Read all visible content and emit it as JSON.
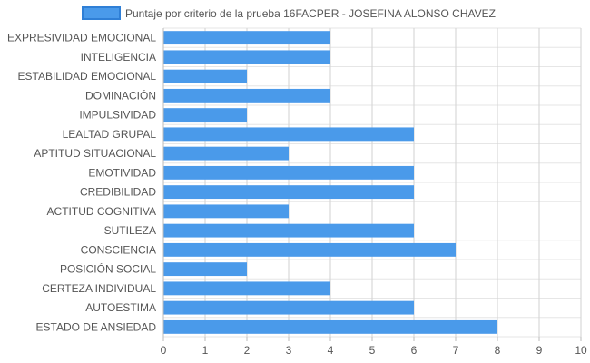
{
  "chart_data": {
    "type": "bar",
    "orientation": "horizontal",
    "categories": [
      "EXPRESIVIDAD EMOCIONAL",
      "INTELIGENCIA",
      "ESTABILIDAD EMOCIONAL",
      "DOMINACIÓN",
      "IMPULSIVIDAD",
      "LEALTAD GRUPAL",
      "APTITUD SITUACIONAL",
      "EMOTIVIDAD",
      "CREDIBILIDAD",
      "ACTITUD COGNITIVA",
      "SUTILEZA",
      "CONSCIENCIA",
      "POSICIÓN SOCIAL",
      "CERTEZA INDIVIDUAL",
      "AUTOESTIMA",
      "ESTADO DE ANSIEDAD"
    ],
    "series": [
      {
        "name": "Puntaje por criterio de la prueba 16FACPER - JOSEFINA ALONSO CHAVEZ",
        "values": [
          4,
          4,
          2,
          4,
          2,
          6,
          3,
          6,
          6,
          3,
          6,
          7,
          2,
          4,
          6,
          8
        ],
        "color": "#4a9aea",
        "border_color": "#2f7fd6"
      }
    ],
    "xlim": [
      0,
      10
    ],
    "xticks": [
      0,
      1,
      2,
      3,
      4,
      5,
      6,
      7,
      8,
      9,
      10
    ],
    "grid": true,
    "legend_position": "top"
  }
}
